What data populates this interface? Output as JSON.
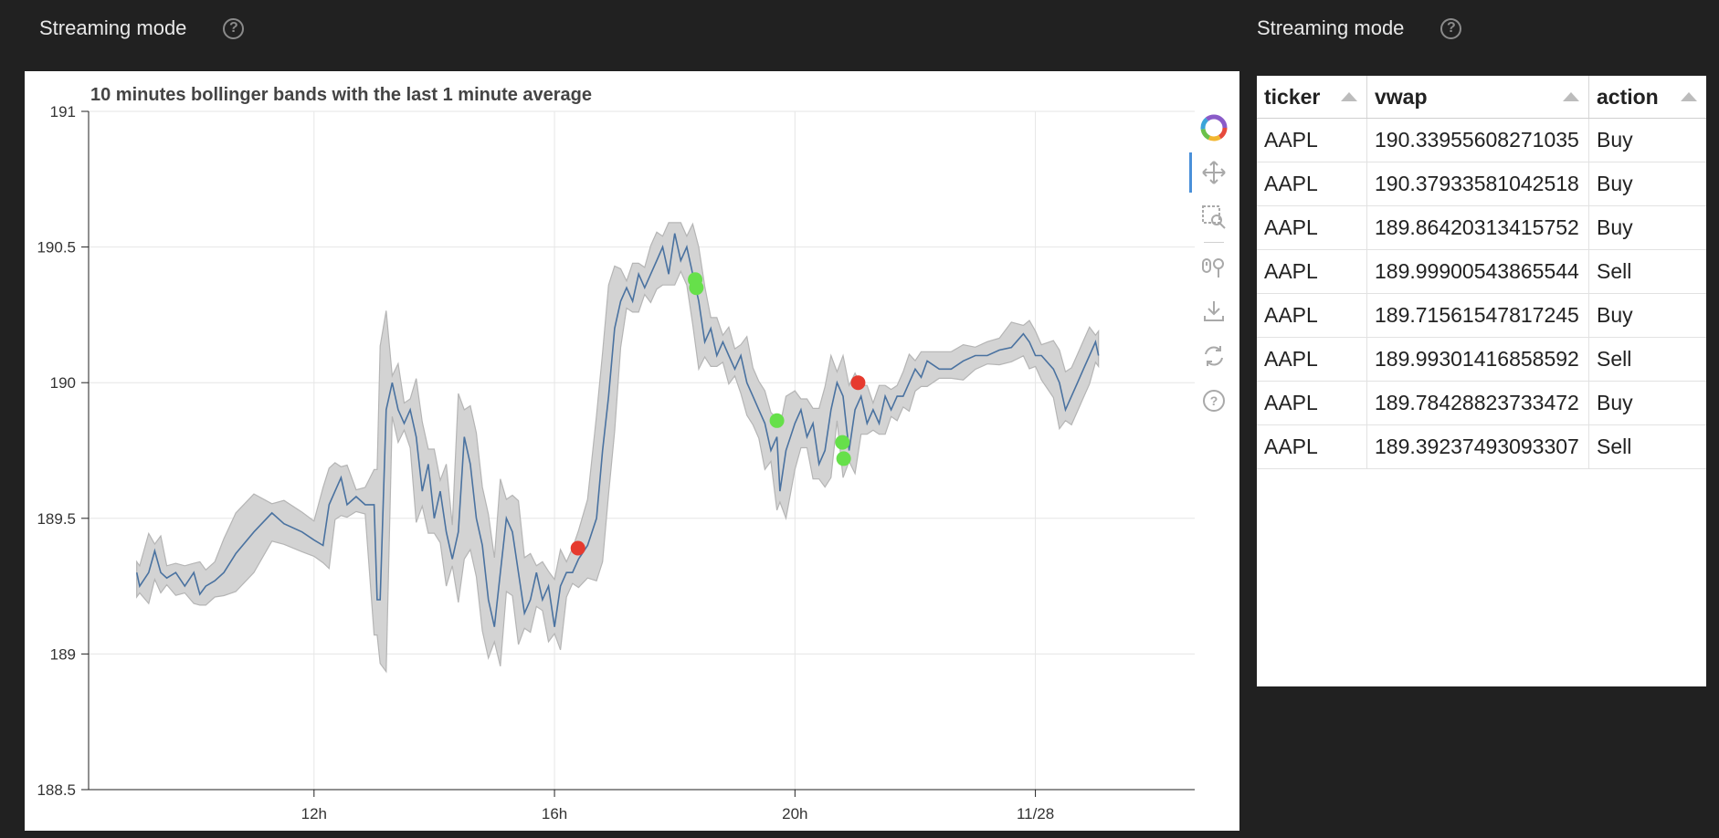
{
  "left_header": {
    "title": "Streaming mode",
    "help": "?"
  },
  "right_header": {
    "title": "Streaming mode",
    "help": "?"
  },
  "chart_data": {
    "type": "line",
    "title": "10 minutes bollinger bands with the last 1 minute average",
    "xlabel": "",
    "ylabel": "",
    "ylim": [
      188.5,
      191
    ],
    "xlim": [
      8.25,
      26.65
    ],
    "x_ticks": [
      {
        "value": 12,
        "label": "12h"
      },
      {
        "value": 16,
        "label": "16h"
      },
      {
        "value": 20,
        "label": "20h"
      },
      {
        "value": 24,
        "label": "11/28"
      }
    ],
    "y_ticks": [
      {
        "value": 191,
        "label": "191"
      },
      {
        "value": 190.5,
        "label": "190.5"
      },
      {
        "value": 190,
        "label": "190"
      },
      {
        "value": 189.5,
        "label": "189.5"
      },
      {
        "value": 189,
        "label": "189"
      },
      {
        "value": 188.5,
        "label": "188.5"
      }
    ],
    "grid": true,
    "series": [
      {
        "kind": "line",
        "color": "#4a72a0",
        "points": [
          [
            9.05,
            189.3
          ],
          [
            9.1,
            189.25
          ],
          [
            9.25,
            189.3
          ],
          [
            9.35,
            189.38
          ],
          [
            9.45,
            189.3
          ],
          [
            9.55,
            189.28
          ],
          [
            9.7,
            189.3
          ],
          [
            9.85,
            189.25
          ],
          [
            10.0,
            189.3
          ],
          [
            10.1,
            189.22
          ],
          [
            10.2,
            189.25
          ],
          [
            10.35,
            189.27
          ],
          [
            10.5,
            189.3
          ],
          [
            10.7,
            189.37
          ],
          [
            11.0,
            189.45
          ],
          [
            11.3,
            189.52
          ],
          [
            11.5,
            189.48
          ],
          [
            11.8,
            189.45
          ],
          [
            12.0,
            189.42
          ],
          [
            12.15,
            189.4
          ],
          [
            12.25,
            189.55
          ],
          [
            12.35,
            189.6
          ],
          [
            12.45,
            189.65
          ],
          [
            12.55,
            189.55
          ],
          [
            12.7,
            189.58
          ],
          [
            12.85,
            189.55
          ],
          [
            13.0,
            189.55
          ],
          [
            13.05,
            189.2
          ],
          [
            13.1,
            189.2
          ],
          [
            13.2,
            189.9
          ],
          [
            13.3,
            190.0
          ],
          [
            13.4,
            189.9
          ],
          [
            13.5,
            189.85
          ],
          [
            13.6,
            189.9
          ],
          [
            13.7,
            189.8
          ],
          [
            13.8,
            189.6
          ],
          [
            13.9,
            189.7
          ],
          [
            14.0,
            189.5
          ],
          [
            14.1,
            189.6
          ],
          [
            14.2,
            189.45
          ],
          [
            14.3,
            189.35
          ],
          [
            14.4,
            189.45
          ],
          [
            14.5,
            189.8
          ],
          [
            14.6,
            189.7
          ],
          [
            14.7,
            189.5
          ],
          [
            14.8,
            189.4
          ],
          [
            14.9,
            189.2
          ],
          [
            15.0,
            189.1
          ],
          [
            15.1,
            189.3
          ],
          [
            15.2,
            189.5
          ],
          [
            15.3,
            189.45
          ],
          [
            15.4,
            189.3
          ],
          [
            15.5,
            189.15
          ],
          [
            15.6,
            189.2
          ],
          [
            15.7,
            189.3
          ],
          [
            15.8,
            189.2
          ],
          [
            15.9,
            189.25
          ],
          [
            16.0,
            189.1
          ],
          [
            16.1,
            189.25
          ],
          [
            16.2,
            189.3
          ],
          [
            16.3,
            189.3
          ],
          [
            16.4,
            189.35
          ],
          [
            16.55,
            189.4
          ],
          [
            16.7,
            189.5
          ],
          [
            16.8,
            189.75
          ],
          [
            16.9,
            189.95
          ],
          [
            17.0,
            190.2
          ],
          [
            17.1,
            190.3
          ],
          [
            17.2,
            190.35
          ],
          [
            17.3,
            190.3
          ],
          [
            17.4,
            190.4
          ],
          [
            17.5,
            190.35
          ],
          [
            17.6,
            190.4
          ],
          [
            17.7,
            190.45
          ],
          [
            17.8,
            190.5
          ],
          [
            17.9,
            190.4
          ],
          [
            18.0,
            190.55
          ],
          [
            18.1,
            190.45
          ],
          [
            18.2,
            190.5
          ],
          [
            18.3,
            190.4
          ],
          [
            18.4,
            190.3
          ],
          [
            18.5,
            190.15
          ],
          [
            18.6,
            190.2
          ],
          [
            18.7,
            190.1
          ],
          [
            18.8,
            190.15
          ],
          [
            18.9,
            190.1
          ],
          [
            19.0,
            190.05
          ],
          [
            19.1,
            190.1
          ],
          [
            19.2,
            190.0
          ],
          [
            19.3,
            189.95
          ],
          [
            19.4,
            189.9
          ],
          [
            19.5,
            189.85
          ],
          [
            19.6,
            189.75
          ],
          [
            19.7,
            189.8
          ],
          [
            19.75,
            189.6
          ],
          [
            19.85,
            189.75
          ],
          [
            20.0,
            189.85
          ],
          [
            20.1,
            189.9
          ],
          [
            20.2,
            189.8
          ],
          [
            20.3,
            189.85
          ],
          [
            20.4,
            189.7
          ],
          [
            20.5,
            189.75
          ],
          [
            20.6,
            189.9
          ],
          [
            20.7,
            190.0
          ],
          [
            20.8,
            189.95
          ],
          [
            20.9,
            189.75
          ],
          [
            21.0,
            189.9
          ],
          [
            21.1,
            189.95
          ],
          [
            21.2,
            189.85
          ],
          [
            21.3,
            189.9
          ],
          [
            21.4,
            189.85
          ],
          [
            21.5,
            189.95
          ],
          [
            21.6,
            189.9
          ],
          [
            21.7,
            189.95
          ],
          [
            21.8,
            189.95
          ],
          [
            21.9,
            190.0
          ],
          [
            22.0,
            190.05
          ],
          [
            22.1,
            190.02
          ],
          [
            22.2,
            190.08
          ],
          [
            22.4,
            190.05
          ],
          [
            22.6,
            190.05
          ],
          [
            22.8,
            190.08
          ],
          [
            23.0,
            190.1
          ],
          [
            23.2,
            190.1
          ],
          [
            23.4,
            190.12
          ],
          [
            23.6,
            190.13
          ],
          [
            23.8,
            190.18
          ],
          [
            23.9,
            190.15
          ],
          [
            24.0,
            190.1
          ],
          [
            24.1,
            190.1
          ],
          [
            24.3,
            190.05
          ],
          [
            24.4,
            190.0
          ],
          [
            24.5,
            189.9
          ],
          [
            24.6,
            189.95
          ],
          [
            24.7,
            190.0
          ],
          [
            24.8,
            190.05
          ],
          [
            24.9,
            190.1
          ],
          [
            25.0,
            190.15
          ],
          [
            25.05,
            190.1
          ]
        ]
      },
      {
        "kind": "markers",
        "color": "#66e04a",
        "points": [
          [
            18.34,
            190.38
          ],
          [
            18.36,
            190.35
          ],
          [
            19.7,
            189.86
          ],
          [
            20.79,
            189.78
          ],
          [
            20.81,
            189.72
          ]
        ]
      },
      {
        "kind": "markers",
        "color": "#e63a2e",
        "points": [
          [
            16.39,
            189.39
          ],
          [
            21.05,
            190.0
          ]
        ]
      }
    ]
  },
  "toolbar": {
    "logo": "bokeh-logo-icon",
    "tools": [
      "pan-icon",
      "box-zoom-icon",
      "wheel-zoom-icon",
      "save-icon",
      "reset-icon",
      "help-icon"
    ]
  },
  "table": {
    "columns": [
      "ticker",
      "vwap",
      "action"
    ],
    "rows": [
      [
        "AAPL",
        "190.33955608271035",
        "Buy"
      ],
      [
        "AAPL",
        "190.37933581042518",
        "Buy"
      ],
      [
        "AAPL",
        "189.86420313415752",
        "Buy"
      ],
      [
        "AAPL",
        "189.99900543865544",
        "Sell"
      ],
      [
        "AAPL",
        "189.71561547817245",
        "Buy"
      ],
      [
        "AAPL",
        "189.99301416858592",
        "Sell"
      ],
      [
        "AAPL",
        "189.78428823733472",
        "Buy"
      ],
      [
        "AAPL",
        "189.39237493093307",
        "Sell"
      ]
    ]
  }
}
